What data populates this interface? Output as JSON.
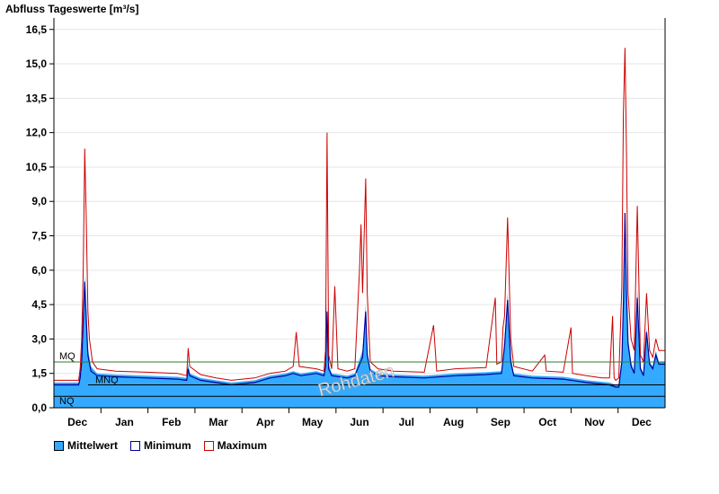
{
  "chart_data": {
    "type": "area",
    "title": "Abfluss Tageswerte [m³/s]",
    "watermark": "Rohdaten",
    "ylim": [
      0,
      17
    ],
    "yticks": [
      "0,0",
      "1,5",
      "3,0",
      "4,5",
      "6,0",
      "7,5",
      "9,0",
      "10,5",
      "12,0",
      "13,5",
      "15,0",
      "16,5"
    ],
    "x_month_labels": [
      "Dec",
      "Jan",
      "Feb",
      "Mar",
      "Apr",
      "May",
      "Jun",
      "Jul",
      "Aug",
      "Sep",
      "Oct",
      "Nov",
      "Dec"
    ],
    "x_domain_days": [
      0,
      396
    ],
    "reference_lines": [
      {
        "label": "MQ",
        "value": 2.0,
        "color": "#2e7d32"
      },
      {
        "label": "MNQ",
        "value": 1.0,
        "color": "#000000"
      },
      {
        "label": "NQ",
        "value": 0.5,
        "color": "#000000"
      }
    ],
    "series": [
      {
        "name": "Mittelwert",
        "color": "#33aaff",
        "points": [
          [
            0,
            1.1
          ],
          [
            16,
            1.1
          ],
          [
            17,
            1.5
          ],
          [
            18,
            2.5
          ],
          [
            19,
            4.5
          ],
          [
            20,
            5.8
          ],
          [
            21,
            4.2
          ],
          [
            22,
            2.6
          ],
          [
            24,
            1.8
          ],
          [
            28,
            1.5
          ],
          [
            40,
            1.45
          ],
          [
            60,
            1.4
          ],
          [
            80,
            1.35
          ],
          [
            86,
            1.3
          ],
          [
            87,
            1.9
          ],
          [
            88,
            1.5
          ],
          [
            95,
            1.3
          ],
          [
            105,
            1.2
          ],
          [
            115,
            1.1
          ],
          [
            130,
            1.2
          ],
          [
            140,
            1.4
          ],
          [
            150,
            1.5
          ],
          [
            155,
            1.6
          ],
          [
            160,
            1.5
          ],
          [
            170,
            1.6
          ],
          [
            175,
            1.5
          ],
          [
            176,
            2.0
          ],
          [
            177,
            4.5
          ],
          [
            178,
            1.9
          ],
          [
            180,
            1.5
          ],
          [
            190,
            1.4
          ],
          [
            195,
            1.5
          ],
          [
            200,
            2.5
          ],
          [
            202,
            4.5
          ],
          [
            203,
            2.5
          ],
          [
            205,
            1.7
          ],
          [
            210,
            1.5
          ],
          [
            220,
            1.45
          ],
          [
            240,
            1.4
          ],
          [
            260,
            1.5
          ],
          [
            280,
            1.55
          ],
          [
            290,
            1.6
          ],
          [
            292,
            3.0
          ],
          [
            294,
            5.0
          ],
          [
            296,
            2.2
          ],
          [
            298,
            1.5
          ],
          [
            310,
            1.4
          ],
          [
            330,
            1.35
          ],
          [
            345,
            1.2
          ],
          [
            360,
            1.1
          ],
          [
            364,
            1.0
          ],
          [
            366,
            1.0
          ],
          [
            368,
            2.2
          ],
          [
            369,
            4.5
          ],
          [
            370,
            7.0
          ],
          [
            371,
            5.5
          ],
          [
            372,
            3.0
          ],
          [
            374,
            2.0
          ],
          [
            376,
            1.6
          ],
          [
            378,
            5.2
          ],
          [
            380,
            1.8
          ],
          [
            382,
            1.5
          ],
          [
            384,
            3.5
          ],
          [
            386,
            2.0
          ],
          [
            388,
            1.8
          ],
          [
            390,
            2.5
          ],
          [
            392,
            2.0
          ],
          [
            396,
            2.0
          ]
        ]
      },
      {
        "name": "Minimum",
        "color": "#000099",
        "points": [
          [
            0,
            1.0
          ],
          [
            16,
            1.0
          ],
          [
            17,
            1.3
          ],
          [
            18,
            2.0
          ],
          [
            19,
            3.8
          ],
          [
            20,
            5.5
          ],
          [
            21,
            3.8
          ],
          [
            22,
            2.3
          ],
          [
            24,
            1.6
          ],
          [
            28,
            1.4
          ],
          [
            40,
            1.35
          ],
          [
            60,
            1.3
          ],
          [
            80,
            1.25
          ],
          [
            86,
            1.2
          ],
          [
            87,
            1.7
          ],
          [
            88,
            1.4
          ],
          [
            95,
            1.2
          ],
          [
            105,
            1.1
          ],
          [
            115,
            1.0
          ],
          [
            130,
            1.1
          ],
          [
            140,
            1.3
          ],
          [
            150,
            1.4
          ],
          [
            155,
            1.5
          ],
          [
            160,
            1.4
          ],
          [
            170,
            1.5
          ],
          [
            175,
            1.4
          ],
          [
            176,
            1.8
          ],
          [
            177,
            4.2
          ],
          [
            178,
            1.7
          ],
          [
            180,
            1.4
          ],
          [
            190,
            1.3
          ],
          [
            195,
            1.4
          ],
          [
            200,
            2.2
          ],
          [
            202,
            4.2
          ],
          [
            203,
            2.3
          ],
          [
            205,
            1.6
          ],
          [
            210,
            1.4
          ],
          [
            220,
            1.35
          ],
          [
            240,
            1.3
          ],
          [
            260,
            1.4
          ],
          [
            280,
            1.45
          ],
          [
            290,
            1.5
          ],
          [
            292,
            2.7
          ],
          [
            294,
            4.7
          ],
          [
            296,
            2.0
          ],
          [
            298,
            1.4
          ],
          [
            310,
            1.3
          ],
          [
            330,
            1.25
          ],
          [
            345,
            1.1
          ],
          [
            360,
            1.0
          ],
          [
            364,
            0.9
          ],
          [
            366,
            0.9
          ],
          [
            368,
            2.0
          ],
          [
            369,
            4.5
          ],
          [
            370,
            8.5
          ],
          [
            371,
            5.0
          ],
          [
            372,
            2.8
          ],
          [
            374,
            1.8
          ],
          [
            376,
            1.5
          ],
          [
            378,
            4.8
          ],
          [
            380,
            1.7
          ],
          [
            382,
            1.4
          ],
          [
            384,
            3.3
          ],
          [
            386,
            1.9
          ],
          [
            388,
            1.7
          ],
          [
            390,
            2.3
          ],
          [
            392,
            1.9
          ],
          [
            396,
            1.9
          ]
        ]
      },
      {
        "name": "Maximum",
        "color": "#cc0000",
        "points": [
          [
            0,
            1.2
          ],
          [
            16,
            1.2
          ],
          [
            17,
            1.7
          ],
          [
            18,
            3.0
          ],
          [
            19,
            6.0
          ],
          [
            20,
            11.3
          ],
          [
            21,
            8.0
          ],
          [
            22,
            4.2
          ],
          [
            23,
            3.0
          ],
          [
            25,
            2.0
          ],
          [
            28,
            1.7
          ],
          [
            40,
            1.6
          ],
          [
            60,
            1.55
          ],
          [
            80,
            1.5
          ],
          [
            86,
            1.4
          ],
          [
            87,
            2.6
          ],
          [
            88,
            1.8
          ],
          [
            95,
            1.45
          ],
          [
            105,
            1.3
          ],
          [
            115,
            1.2
          ],
          [
            130,
            1.3
          ],
          [
            140,
            1.5
          ],
          [
            150,
            1.6
          ],
          [
            155,
            1.8
          ],
          [
            157,
            3.3
          ],
          [
            159,
            1.8
          ],
          [
            170,
            1.7
          ],
          [
            175,
            1.6
          ],
          [
            176,
            2.5
          ],
          [
            177,
            12.0
          ],
          [
            178,
            2.3
          ],
          [
            180,
            1.7
          ],
          [
            182,
            5.3
          ],
          [
            184,
            1.7
          ],
          [
            190,
            1.6
          ],
          [
            195,
            1.7
          ],
          [
            198,
            6.0
          ],
          [
            199,
            8.0
          ],
          [
            200,
            5.0
          ],
          [
            202,
            10.0
          ],
          [
            203,
            5.0
          ],
          [
            205,
            2.0
          ],
          [
            210,
            1.7
          ],
          [
            220,
            1.6
          ],
          [
            240,
            1.55
          ],
          [
            246,
            3.6
          ],
          [
            248,
            1.6
          ],
          [
            260,
            1.7
          ],
          [
            280,
            1.75
          ],
          [
            286,
            4.8
          ],
          [
            287,
            1.9
          ],
          [
            290,
            2.0
          ],
          [
            291,
            3.5
          ],
          [
            292,
            4.0
          ],
          [
            294,
            8.3
          ],
          [
            296,
            3.0
          ],
          [
            298,
            1.8
          ],
          [
            310,
            1.6
          ],
          [
            318,
            2.3
          ],
          [
            319,
            1.6
          ],
          [
            330,
            1.55
          ],
          [
            335,
            3.5
          ],
          [
            336,
            1.5
          ],
          [
            345,
            1.4
          ],
          [
            355,
            1.3
          ],
          [
            360,
            1.3
          ],
          [
            362,
            4.0
          ],
          [
            363,
            1.3
          ],
          [
            364,
            1.2
          ],
          [
            366,
            1.3
          ],
          [
            368,
            5.3
          ],
          [
            369,
            12.8
          ],
          [
            370,
            15.7
          ],
          [
            371,
            11.0
          ],
          [
            372,
            5.0
          ],
          [
            374,
            3.0
          ],
          [
            376,
            2.5
          ],
          [
            378,
            8.8
          ],
          [
            380,
            2.3
          ],
          [
            382,
            2.0
          ],
          [
            384,
            5.0
          ],
          [
            386,
            2.5
          ],
          [
            388,
            2.2
          ],
          [
            390,
            3.0
          ],
          [
            392,
            2.5
          ],
          [
            396,
            2.5
          ]
        ]
      }
    ],
    "legend": [
      "Mittelwert",
      "Minimum",
      "Maximum"
    ],
    "legend_position": "bottom-left",
    "grid": true
  }
}
